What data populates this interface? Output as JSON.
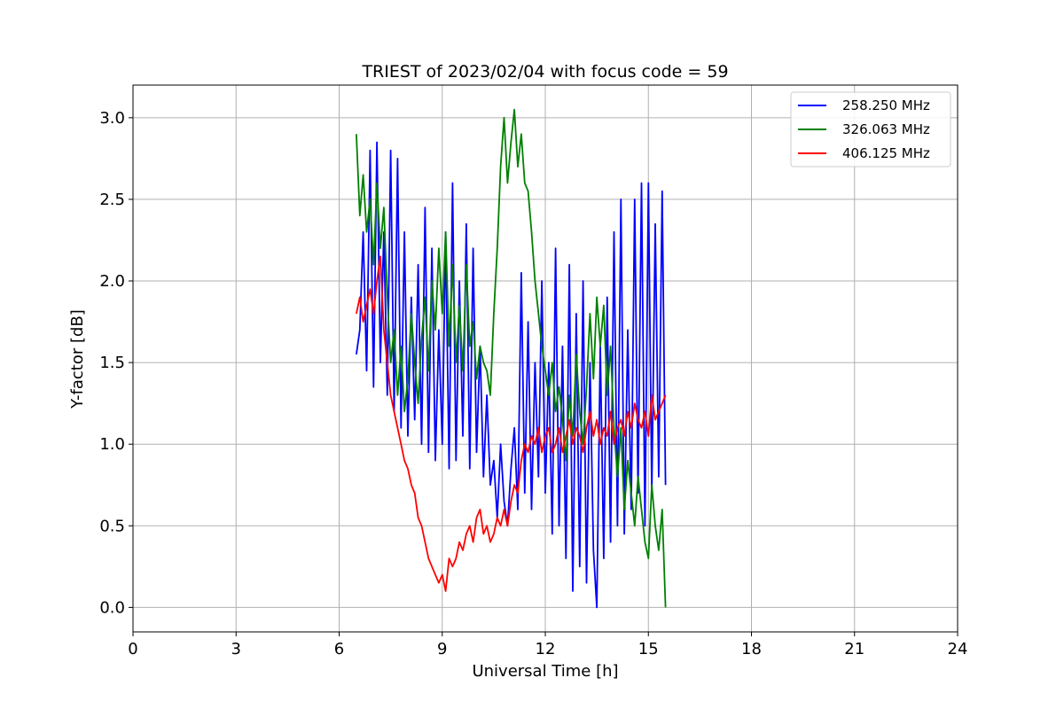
{
  "chart_data": {
    "type": "line",
    "title": "TRIEST of 2023/02/04 with focus code = 59",
    "xlabel": "Universal Time [h]",
    "ylabel": "Y-factor [dB]",
    "xlim": [
      0,
      24
    ],
    "ylim": [
      -0.15,
      3.2
    ],
    "xticks": [
      0,
      3,
      6,
      9,
      12,
      15,
      18,
      21,
      24
    ],
    "yticks": [
      0.0,
      0.5,
      1.0,
      1.5,
      2.0,
      2.5,
      3.0
    ],
    "ytick_labels": [
      "0.0",
      "0.5",
      "1.0",
      "1.5",
      "2.0",
      "2.5",
      "3.0"
    ],
    "grid": true,
    "legend_position": "top-right",
    "series": [
      {
        "name": "258.250 MHz",
        "color": "#0000ff",
        "x": [
          6.5,
          6.6,
          6.7,
          6.8,
          6.9,
          7.0,
          7.1,
          7.2,
          7.3,
          7.4,
          7.5,
          7.6,
          7.7,
          7.8,
          7.9,
          8.0,
          8.1,
          8.2,
          8.3,
          8.4,
          8.5,
          8.6,
          8.7,
          8.8,
          8.9,
          9.0,
          9.1,
          9.2,
          9.3,
          9.4,
          9.5,
          9.6,
          9.7,
          9.8,
          9.9,
          10.0,
          10.1,
          10.2,
          10.3,
          10.4,
          10.5,
          10.6,
          10.7,
          10.8,
          10.9,
          11.0,
          11.1,
          11.2,
          11.3,
          11.4,
          11.5,
          11.6,
          11.7,
          11.8,
          11.9,
          12.0,
          12.1,
          12.2,
          12.3,
          12.4,
          12.5,
          12.6,
          12.7,
          12.8,
          12.9,
          13.0,
          13.1,
          13.2,
          13.3,
          13.4,
          13.5,
          13.6,
          13.7,
          13.8,
          13.9,
          14.0,
          14.1,
          14.2,
          14.3,
          14.4,
          14.5,
          14.6,
          14.7,
          14.8,
          14.9,
          15.0,
          15.1,
          15.2,
          15.3,
          15.4,
          15.5
        ],
        "y": [
          1.55,
          1.7,
          2.3,
          1.45,
          2.8,
          1.35,
          2.85,
          1.5,
          2.3,
          1.3,
          2.8,
          1.2,
          2.75,
          1.1,
          2.3,
          1.05,
          1.9,
          1.15,
          2.1,
          1.0,
          2.45,
          0.95,
          2.2,
          0.9,
          1.7,
          1.0,
          2.3,
          0.85,
          2.6,
          0.9,
          2.0,
          1.05,
          2.35,
          0.85,
          2.2,
          0.95,
          1.6,
          0.8,
          1.3,
          0.75,
          0.9,
          0.55,
          1.0,
          0.65,
          0.5,
          0.85,
          1.1,
          0.6,
          2.05,
          0.7,
          1.75,
          0.6,
          1.5,
          0.8,
          2.0,
          0.7,
          1.5,
          0.45,
          2.2,
          0.5,
          1.6,
          0.3,
          2.1,
          0.1,
          1.8,
          0.25,
          2.0,
          0.15,
          1.5,
          0.35,
          0.0,
          1.6,
          0.3,
          1.9,
          0.4,
          2.3,
          0.5,
          2.5,
          0.45,
          1.7,
          0.6,
          2.5,
          0.7,
          2.6,
          0.5,
          2.6,
          0.7,
          2.35,
          0.8,
          2.55,
          0.75
        ]
      },
      {
        "name": "326.063 MHz",
        "color": "#008000",
        "x": [
          6.5,
          6.6,
          6.7,
          6.8,
          6.9,
          7.0,
          7.1,
          7.2,
          7.3,
          7.4,
          7.5,
          7.6,
          7.7,
          7.8,
          7.9,
          8.0,
          8.1,
          8.2,
          8.3,
          8.4,
          8.5,
          8.6,
          8.7,
          8.8,
          8.9,
          9.0,
          9.1,
          9.2,
          9.3,
          9.4,
          9.5,
          9.6,
          9.7,
          9.8,
          9.9,
          10.0,
          10.1,
          10.2,
          10.3,
          10.4,
          10.5,
          10.6,
          10.7,
          10.8,
          10.9,
          11.0,
          11.1,
          11.2,
          11.3,
          11.4,
          11.5,
          11.6,
          11.7,
          11.8,
          11.9,
          12.0,
          12.1,
          12.2,
          12.3,
          12.4,
          12.5,
          12.6,
          12.7,
          12.8,
          12.9,
          13.0,
          13.1,
          13.2,
          13.3,
          13.4,
          13.5,
          13.6,
          13.7,
          13.8,
          13.9,
          14.0,
          14.1,
          14.2,
          14.3,
          14.4,
          14.5,
          14.6,
          14.7,
          14.8,
          14.9,
          15.0,
          15.1,
          15.2,
          15.3,
          15.4,
          15.5
        ],
        "y": [
          2.9,
          2.4,
          2.65,
          2.3,
          2.5,
          2.1,
          2.6,
          2.2,
          2.45,
          1.9,
          1.5,
          1.7,
          1.3,
          1.6,
          1.2,
          1.4,
          1.8,
          1.5,
          1.25,
          1.65,
          1.9,
          1.45,
          2.0,
          1.7,
          2.2,
          1.8,
          2.3,
          1.6,
          2.1,
          1.5,
          1.85,
          1.45,
          2.1,
          1.6,
          1.75,
          1.4,
          1.6,
          1.5,
          1.45,
          1.3,
          1.8,
          2.2,
          2.7,
          3.0,
          2.6,
          2.85,
          3.05,
          2.7,
          2.9,
          2.6,
          2.55,
          2.3,
          2.0,
          1.8,
          1.6,
          1.45,
          1.3,
          1.5,
          1.2,
          1.35,
          1.15,
          0.9,
          1.3,
          1.05,
          1.55,
          1.2,
          1.0,
          1.35,
          1.8,
          1.4,
          1.9,
          1.6,
          1.85,
          1.3,
          1.6,
          1.1,
          0.8,
          1.1,
          0.6,
          0.9,
          0.7,
          0.5,
          0.8,
          0.6,
          0.4,
          0.3,
          0.75,
          0.5,
          0.35,
          0.6,
          0.0
        ]
      },
      {
        "name": "406.125 MHz",
        "color": "#ff0000",
        "x": [
          6.5,
          6.6,
          6.7,
          6.8,
          6.9,
          7.0,
          7.1,
          7.2,
          7.3,
          7.4,
          7.5,
          7.6,
          7.7,
          7.8,
          7.9,
          8.0,
          8.1,
          8.2,
          8.3,
          8.4,
          8.5,
          8.6,
          8.7,
          8.8,
          8.9,
          9.0,
          9.1,
          9.2,
          9.3,
          9.4,
          9.5,
          9.6,
          9.7,
          9.8,
          9.9,
          10.0,
          10.1,
          10.2,
          10.3,
          10.4,
          10.5,
          10.6,
          10.7,
          10.8,
          10.9,
          11.0,
          11.1,
          11.2,
          11.3,
          11.4,
          11.5,
          11.6,
          11.7,
          11.8,
          11.9,
          12.0,
          12.1,
          12.2,
          12.3,
          12.4,
          12.5,
          12.6,
          12.7,
          12.8,
          12.9,
          13.0,
          13.1,
          13.2,
          13.3,
          13.4,
          13.5,
          13.6,
          13.7,
          13.8,
          13.9,
          14.0,
          14.1,
          14.2,
          14.3,
          14.4,
          14.5,
          14.6,
          14.7,
          14.8,
          14.9,
          15.0,
          15.1,
          15.2,
          15.3,
          15.4,
          15.5
        ],
        "y": [
          1.8,
          1.9,
          1.75,
          1.85,
          1.95,
          1.8,
          2.0,
          2.15,
          1.7,
          1.5,
          1.3,
          1.2,
          1.1,
          1.0,
          0.9,
          0.85,
          0.75,
          0.7,
          0.55,
          0.5,
          0.4,
          0.3,
          0.25,
          0.2,
          0.15,
          0.2,
          0.1,
          0.3,
          0.25,
          0.3,
          0.4,
          0.35,
          0.45,
          0.5,
          0.4,
          0.55,
          0.6,
          0.45,
          0.5,
          0.4,
          0.45,
          0.55,
          0.5,
          0.6,
          0.5,
          0.65,
          0.75,
          0.7,
          0.9,
          1.0,
          0.95,
          1.05,
          1.0,
          1.1,
          0.95,
          1.05,
          1.1,
          0.95,
          1.0,
          1.1,
          0.95,
          1.05,
          1.15,
          1.0,
          1.1,
          1.05,
          0.95,
          1.1,
          1.2,
          1.05,
          1.15,
          1.0,
          1.1,
          1.05,
          1.2,
          1.0,
          1.1,
          1.15,
          1.05,
          1.2,
          1.1,
          1.25,
          1.15,
          1.1,
          1.2,
          1.05,
          1.3,
          1.15,
          1.2,
          1.25,
          1.3
        ]
      }
    ]
  }
}
